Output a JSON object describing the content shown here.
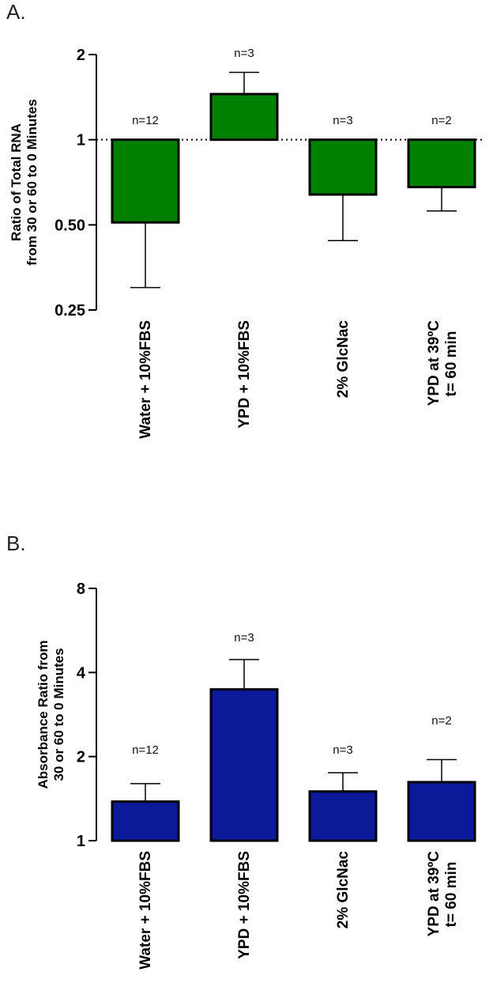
{
  "chart_data": [
    {
      "panel": "A.",
      "type": "bar",
      "ylabel_lines": [
        "Ratio of Total RNA",
        "from 30 or 60 to 0 Minutes"
      ],
      "ylog": true,
      "ylim": [
        0.25,
        2
      ],
      "yticks": [
        0.25,
        0.5,
        1,
        2
      ],
      "ytick_labels": [
        "0.25",
        "0.50",
        "1",
        "2"
      ],
      "baseline": 1,
      "reference_line": 1,
      "categories": [
        [
          "Water + 10%FBS"
        ],
        [
          "YPD + 10%FBS"
        ],
        [
          "2% GlcNac"
        ],
        [
          "YPD at 39ºC",
          "t= 60 min"
        ]
      ],
      "values": [
        0.51,
        1.45,
        0.64,
        0.68
      ],
      "error_ends": [
        0.3,
        1.73,
        0.44,
        0.56
      ],
      "n_labels": [
        "n=12",
        "n=3",
        "n=3",
        "n=2"
      ],
      "colors": {
        "bar": "#008000",
        "edge": "#000000"
      }
    },
    {
      "panel": "B.",
      "type": "bar",
      "ylabel_lines": [
        "Absorbance Ratio from",
        "30 or 60 to 0 Minutes"
      ],
      "ylog": true,
      "ylim": [
        1,
        8
      ],
      "yticks": [
        1,
        2,
        4,
        8
      ],
      "ytick_labels": [
        "1",
        "2",
        "4",
        "8"
      ],
      "baseline": 1,
      "categories": [
        [
          "Water + 10%FBS"
        ],
        [
          "YPD + 10%FBS"
        ],
        [
          "2% GlcNac"
        ],
        [
          "YPD at 39ºC",
          "t= 60 min"
        ]
      ],
      "values": [
        1.38,
        3.48,
        1.5,
        1.62
      ],
      "error_ends": [
        1.6,
        4.45,
        1.75,
        1.95
      ],
      "n_labels": [
        "n=12",
        "n=3",
        "n=3",
        "n=2"
      ],
      "colors": {
        "bar": "#0a1a99",
        "edge": "#000000"
      }
    }
  ]
}
